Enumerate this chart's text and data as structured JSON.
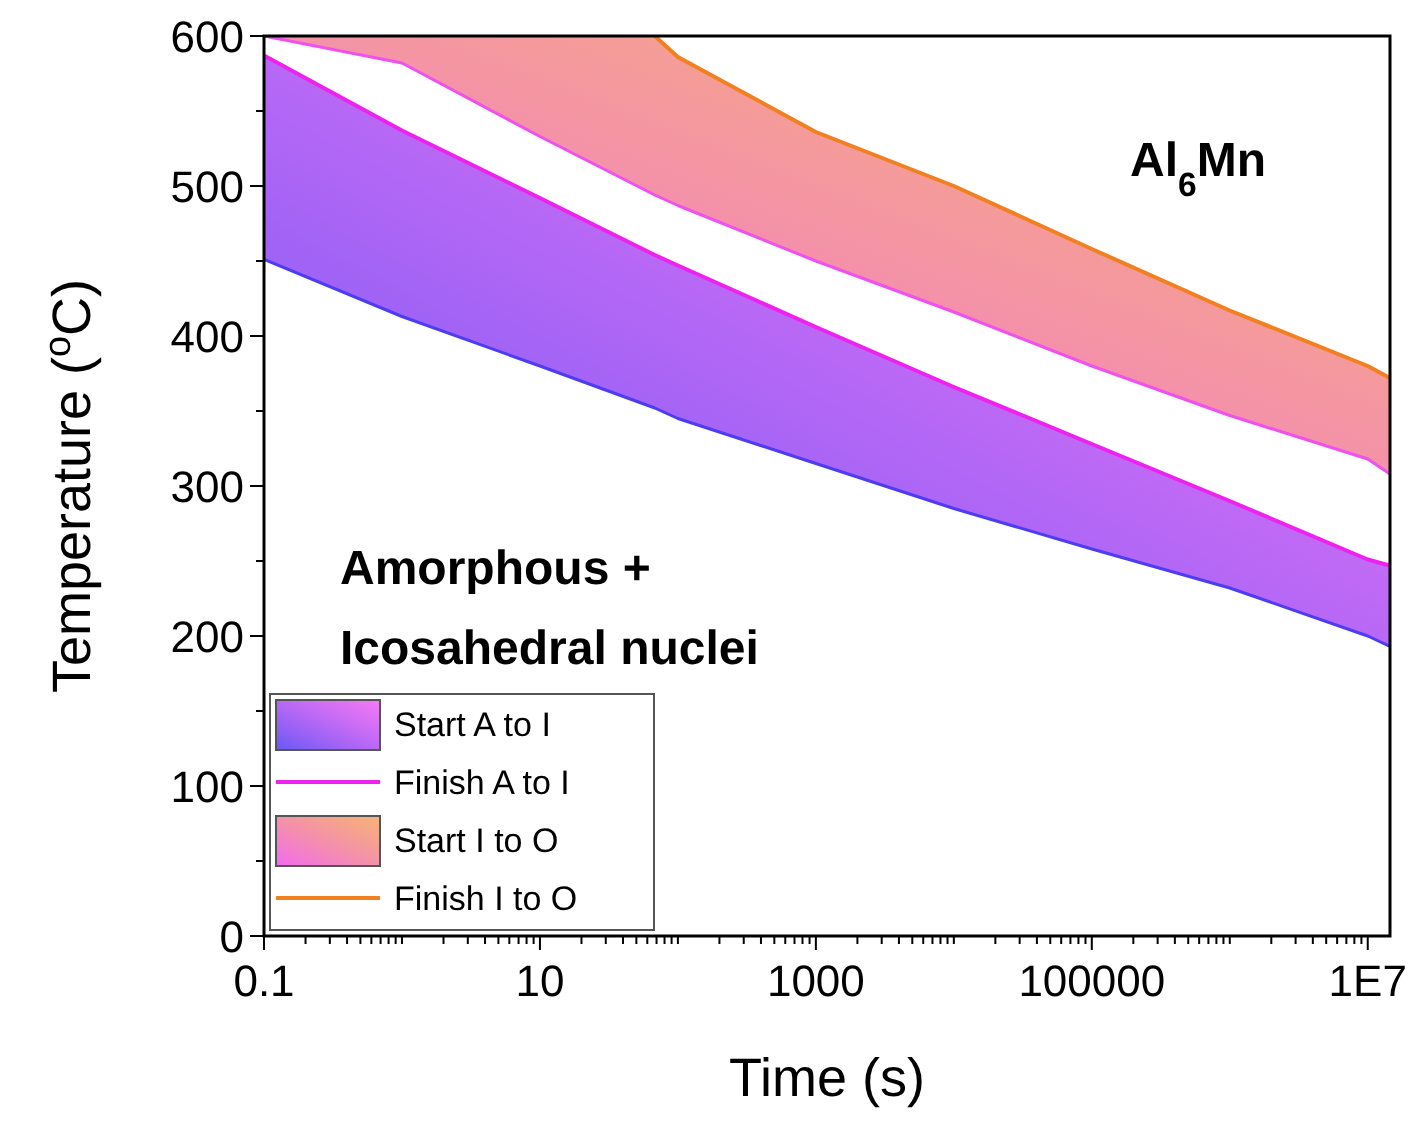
{
  "chart_data": {
    "type": "line",
    "xlabel": "Time (s)",
    "ylabel": "Temperature ($^{o}$C)",
    "annotations": [
      "Al$_{6}$Mn",
      "Amorphous +\nIcosahedral nuclei"
    ],
    "log": "x",
    "legend": "bottom left",
    "grid": false,
    "x": [
      0.1,
      1,
      10,
      68,
      100,
      1000,
      10000,
      100000,
      1000000,
      10000000,
      14500000
    ],
    "xlim": [
      0.1,
      14500000
    ],
    "ylim": [
      0,
      600
    ],
    "xticks": [
      {
        "value": 0.1,
        "label": "0.1"
      },
      {
        "value": 0.2,
        "label": null
      },
      {
        "value": 0.3,
        "label": null
      },
      {
        "value": 0.4,
        "label": null
      },
      {
        "value": 0.5,
        "label": null
      },
      {
        "value": 0.6,
        "label": null
      },
      {
        "value": 0.7,
        "label": null
      },
      {
        "value": 0.8,
        "label": null
      },
      {
        "value": 0.9,
        "label": null
      },
      {
        "value": 1,
        "label": null
      },
      {
        "value": 2,
        "label": null
      },
      {
        "value": 3,
        "label": null
      },
      {
        "value": 4,
        "label": null
      },
      {
        "value": 5,
        "label": null
      },
      {
        "value": 6,
        "label": null
      },
      {
        "value": 7,
        "label": null
      },
      {
        "value": 8,
        "label": null
      },
      {
        "value": 9,
        "label": null
      },
      {
        "value": 10,
        "label": "10"
      },
      {
        "value": 20,
        "label": null
      },
      {
        "value": 30,
        "label": null
      },
      {
        "value": 40,
        "label": null
      },
      {
        "value": 50,
        "label": null
      },
      {
        "value": 60,
        "label": null
      },
      {
        "value": 70,
        "label": null
      },
      {
        "value": 80,
        "label": null
      },
      {
        "value": 90,
        "label": null
      },
      {
        "value": 100,
        "label": null
      },
      {
        "value": 200,
        "label": null
      },
      {
        "value": 300,
        "label": null
      },
      {
        "value": 400,
        "label": null
      },
      {
        "value": 500,
        "label": null
      },
      {
        "value": 600,
        "label": null
      },
      {
        "value": 700,
        "label": null
      },
      {
        "value": 800,
        "label": null
      },
      {
        "value": 900,
        "label": null
      },
      {
        "value": 1000,
        "label": "1000"
      },
      {
        "value": 2000,
        "label": null
      },
      {
        "value": 3000,
        "label": null
      },
      {
        "value": 4000,
        "label": null
      },
      {
        "value": 5000,
        "label": null
      },
      {
        "value": 6000,
        "label": null
      },
      {
        "value": 7000,
        "label": null
      },
      {
        "value": 8000,
        "label": null
      },
      {
        "value": 9000,
        "label": null
      },
      {
        "value": 10000,
        "label": null
      },
      {
        "value": 20000,
        "label": null
      },
      {
        "value": 30000,
        "label": null
      },
      {
        "value": 40000,
        "label": null
      },
      {
        "value": 50000,
        "label": null
      },
      {
        "value": 60000,
        "label": null
      },
      {
        "value": 70000,
        "label": null
      },
      {
        "value": 80000,
        "label": null
      },
      {
        "value": 90000,
        "label": null
      },
      {
        "value": 100000,
        "label": "100000"
      },
      {
        "value": 200000,
        "label": null
      },
      {
        "value": 300000,
        "label": null
      },
      {
        "value": 400000,
        "label": null
      },
      {
        "value": 500000,
        "label": null
      },
      {
        "value": 600000,
        "label": null
      },
      {
        "value": 700000,
        "label": null
      },
      {
        "value": 800000,
        "label": null
      },
      {
        "value": 900000,
        "label": null
      },
      {
        "value": 1000000,
        "label": null
      },
      {
        "value": 2000000,
        "label": null
      },
      {
        "value": 3000000,
        "label": null
      },
      {
        "value": 4000000,
        "label": null
      },
      {
        "value": 5000000,
        "label": null
      },
      {
        "value": 6000000,
        "label": null
      },
      {
        "value": 7000000,
        "label": null
      },
      {
        "value": 8000000,
        "label": null
      },
      {
        "value": 9000000,
        "label": null
      },
      {
        "value": 10000000,
        "label": "1E7"
      }
    ],
    "yticks": [
      0,
      {
        "value": 50,
        "label": null
      },
      100,
      {
        "value": 150,
        "label": null
      },
      200,
      {
        "value": 250,
        "label": null
      },
      300,
      {
        "value": 350,
        "label": null
      },
      400,
      {
        "value": 450,
        "label": null
      },
      500,
      {
        "value": 550,
        "label": null
      },
      600
    ],
    "series": [
      {
        "name": "Start A to I",
        "color": "#4b3cf5",
        "values": [
          451,
          413,
          380,
          352,
          345,
          315,
          285,
          258,
          232,
          200,
          193
        ],
        "lower": [
          451,
          413,
          380,
          352,
          345,
          315,
          285,
          258,
          232,
          200,
          193
        ],
        "upper": [
          587,
          537,
          492,
          454,
          447,
          406,
          366,
          328,
          290,
          251,
          247
        ]
      },
      {
        "name": "Finish A to I",
        "color": "#ee22ee",
        "values": [
          587,
          537,
          492,
          454,
          447,
          406,
          366,
          328,
          290,
          251,
          247
        ]
      },
      {
        "name": "Start I to O",
        "color": "#f050f0",
        "values": [
          600,
          582,
          533,
          494,
          487,
          450,
          416,
          380,
          347,
          318,
          308
        ],
        "lower": [
          600,
          582,
          533,
          494,
          487,
          450,
          416,
          380,
          347,
          318,
          308
        ],
        "upper": [
          600,
          600,
          600,
          600,
          586,
          536,
          500,
          458,
          417,
          380,
          372
        ]
      },
      {
        "name": "Finish I to O",
        "color": "#f08020",
        "values": [
          null,
          null,
          null,
          600,
          586,
          536,
          500,
          458,
          417,
          380,
          372
        ]
      }
    ]
  }
}
